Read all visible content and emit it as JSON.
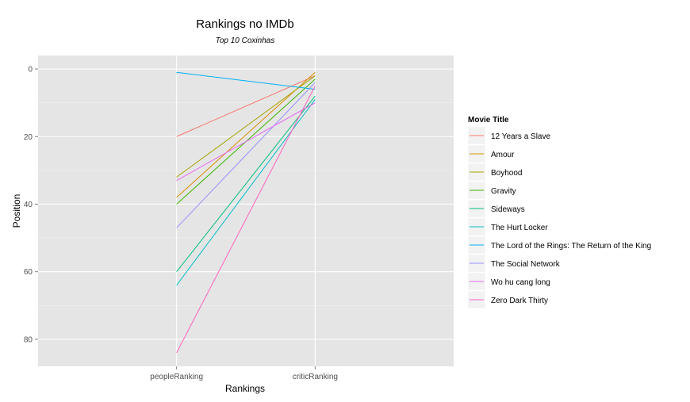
{
  "chart_data": {
    "type": "line",
    "title": "Rankings no IMDb",
    "subtitle": "Top 10 Coxinhas",
    "xlabel": "Rankings",
    "ylabel": "Position",
    "categories": [
      "peopleRanking",
      "criticRanking"
    ],
    "y_ticks": [
      0,
      20,
      40,
      60,
      80
    ],
    "ylim": [
      -4,
      88
    ],
    "y_reversed": true,
    "grid": true,
    "legend_title": "Movie Title",
    "legend_position": "right",
    "series": [
      {
        "name": "12 Years a Slave",
        "color": "#F8766D",
        "values": [
          20,
          2
        ]
      },
      {
        "name": "Amour",
        "color": "#D89000",
        "values": [
          38,
          1
        ]
      },
      {
        "name": "Boyhood",
        "color": "#A3A500",
        "values": [
          32,
          2
        ]
      },
      {
        "name": "Gravity",
        "color": "#39B600",
        "values": [
          40,
          3
        ]
      },
      {
        "name": "Sideways",
        "color": "#00BF7D",
        "values": [
          60,
          8
        ]
      },
      {
        "name": "The Hurt Locker",
        "color": "#00BFC4",
        "values": [
          64,
          9
        ]
      },
      {
        "name": "The Lord of the Rings: The Return of the King",
        "color": "#00B0F6",
        "values": [
          1,
          6
        ]
      },
      {
        "name": "The Social Network",
        "color": "#9590FF",
        "values": [
          47,
          4
        ]
      },
      {
        "name": "Wo hu cang long",
        "color": "#E76BF3",
        "values": [
          33,
          10
        ]
      },
      {
        "name": "Zero Dark Thirty",
        "color": "#FF62BC",
        "values": [
          84,
          5
        ]
      }
    ]
  }
}
